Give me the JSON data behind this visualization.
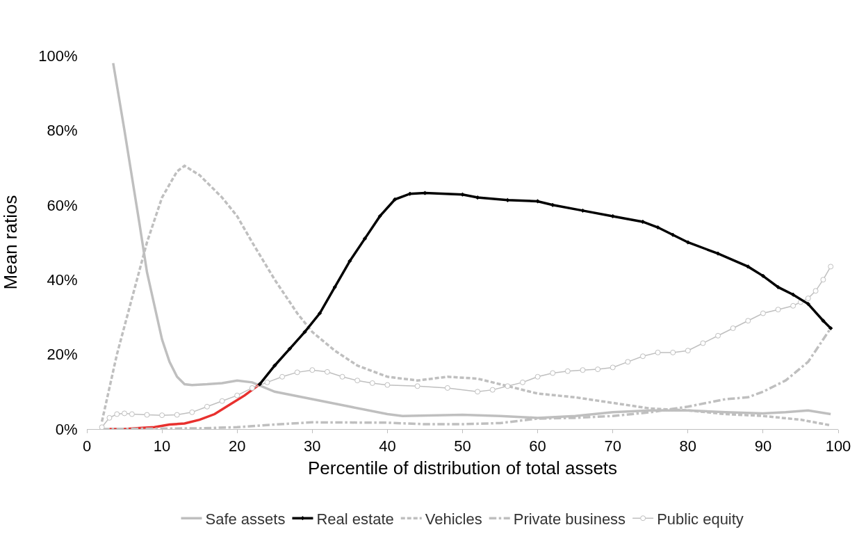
{
  "chart_data": {
    "type": "line",
    "xlabel": "Percentile of distribution of total assets",
    "ylabel": "Mean ratios",
    "xlim": [
      0,
      100
    ],
    "xticks": [
      0,
      10,
      20,
      30,
      40,
      50,
      60,
      70,
      80,
      90,
      100
    ],
    "ylim": [
      0,
      100
    ],
    "yticks": [
      {
        "value": 0,
        "label": "0%"
      },
      {
        "value": 20,
        "label": "20%"
      },
      {
        "value": 40,
        "label": "40%"
      },
      {
        "value": 60,
        "label": "60%"
      },
      {
        "value": 80,
        "label": "80%"
      },
      {
        "value": 100,
        "label": "100%"
      }
    ],
    "legend": "bottom",
    "series": [
      {
        "name": "Safe assets",
        "color": "#bfbfbf",
        "line_style": "solid",
        "marker": "none",
        "x": [
          3.5,
          5,
          7,
          8,
          10,
          11,
          12,
          13,
          14,
          16,
          18,
          20,
          22,
          25,
          30,
          35,
          40,
          42,
          50,
          55,
          60,
          65,
          70,
          75,
          80,
          85,
          90,
          93,
          96,
          99
        ],
        "values": [
          98,
          80,
          55,
          42,
          24,
          18,
          14,
          12,
          11.8,
          12,
          12.3,
          13,
          12.5,
          10,
          8,
          6,
          4,
          3.5,
          3.8,
          3.5,
          3,
          3.5,
          4.5,
          5,
          5,
          4.5,
          4.2,
          4.5,
          5,
          4
        ]
      },
      {
        "name": "Real estate",
        "color": "#000000",
        "line_style": "solid",
        "marker": "diamond",
        "x": [
          23,
          25,
          27,
          29,
          31,
          33,
          35,
          37,
          39,
          41,
          43,
          45,
          50,
          52,
          56,
          60,
          62,
          66,
          70,
          74,
          76,
          78,
          80,
          84,
          88,
          90,
          92,
          94,
          96,
          98,
          99
        ],
        "values": [
          12,
          17,
          21.5,
          26,
          31,
          38,
          45,
          51,
          57,
          61.5,
          63,
          63.2,
          62.8,
          62,
          61.3,
          61,
          60,
          58.5,
          57,
          55.5,
          54,
          52,
          50,
          47,
          43.5,
          41,
          38,
          36,
          33.5,
          29,
          27
        ]
      },
      {
        "color": "#e8302e",
        "line_style": "solid",
        "marker": "none",
        "x": [
          3,
          5,
          7,
          9,
          11,
          13,
          15,
          17,
          19,
          21,
          23
        ],
        "values": [
          0,
          0,
          0.3,
          0.5,
          1.2,
          1.5,
          2.5,
          4,
          6.5,
          9,
          12
        ]
      },
      {
        "name": "Vehicles",
        "color": "#bfbfbf",
        "line_style": "dashed",
        "marker": "none",
        "x": [
          2,
          4,
          6,
          8,
          10,
          12,
          13,
          15,
          18,
          20,
          22,
          25,
          28,
          30,
          33,
          36,
          40,
          44,
          48,
          52,
          55,
          60,
          65,
          70,
          75,
          80,
          85,
          90,
          95,
          99
        ],
        "values": [
          2,
          20,
          35,
          50,
          62,
          69,
          70.5,
          68,
          62,
          57,
          50,
          40,
          31,
          26,
          21,
          17,
          14,
          13,
          14,
          13.5,
          12,
          9.5,
          8.5,
          7,
          5.5,
          5,
          4,
          3.5,
          2.5,
          1
        ]
      },
      {
        "name": "Private business",
        "color": "#bfbfbf",
        "line_style": "dashdot",
        "marker": "none",
        "x": [
          2,
          15,
          20,
          25,
          30,
          40,
          45,
          50,
          55,
          60,
          65,
          70,
          75,
          80,
          85,
          88,
          90,
          93,
          96,
          99
        ],
        "values": [
          0,
          0.2,
          0.5,
          1.2,
          1.8,
          1.7,
          1.3,
          1.3,
          1.6,
          2.8,
          3,
          3.5,
          4.5,
          6,
          8,
          8.5,
          10,
          13,
          18,
          27
        ]
      },
      {
        "name": "Public equity",
        "color": "#bfbfbf",
        "line_style": "solid",
        "marker": "circle",
        "x": [
          2,
          3,
          4,
          5,
          6,
          8,
          10,
          12,
          14,
          16,
          18,
          20,
          22,
          24,
          26,
          28,
          30,
          32,
          34,
          36,
          38,
          40,
          44,
          48,
          52,
          54,
          56,
          58,
          60,
          62,
          64,
          66,
          68,
          70,
          72,
          74,
          76,
          78,
          80,
          82,
          84,
          86,
          88,
          90,
          92,
          94,
          95,
          96,
          97,
          98,
          99
        ],
        "values": [
          0.5,
          3,
          4,
          4.2,
          4,
          3.8,
          3.7,
          3.8,
          4.5,
          6,
          7.5,
          9,
          11,
          12.5,
          14,
          15.2,
          15.8,
          15.3,
          14,
          13,
          12.3,
          11.8,
          11.5,
          11,
          10,
          10.5,
          11.5,
          12.5,
          14,
          15,
          15.5,
          15.8,
          16,
          16.5,
          18,
          19.5,
          20.5,
          20.5,
          21,
          23,
          25,
          27,
          29,
          31,
          32,
          33,
          34,
          35,
          37,
          40,
          43.5
        ]
      }
    ]
  }
}
